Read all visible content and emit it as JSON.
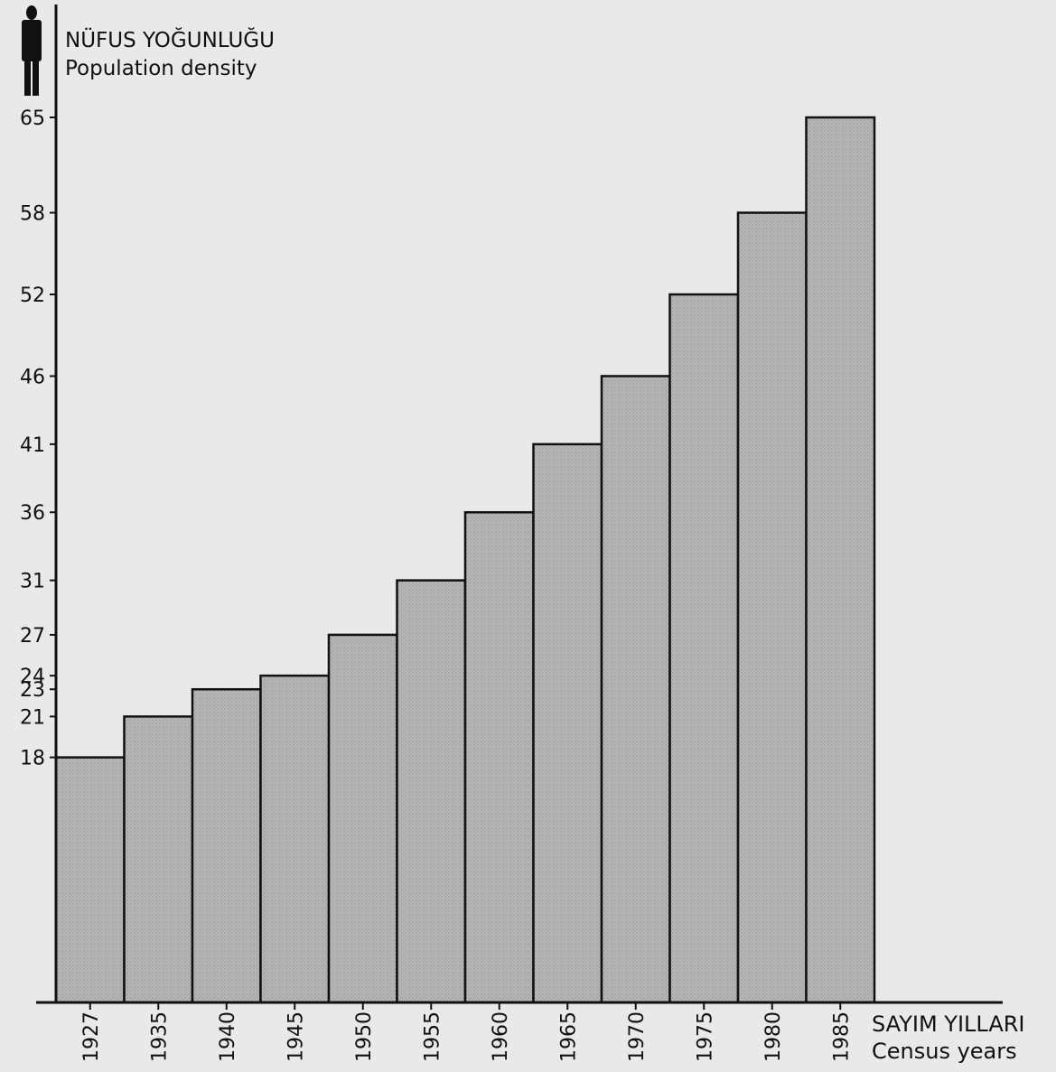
{
  "chart_data": {
    "type": "bar",
    "ylabel_line1": "NÜFUS YOĞUNLUĞU",
    "ylabel_line2": "Population density",
    "xlabel_line1": "SAYIM YILLARI",
    "xlabel_line2": "Census years",
    "categories": [
      "1927",
      "1935",
      "1940",
      "1945",
      "1950",
      "1955",
      "1960",
      "1965",
      "1970",
      "1975",
      "1980",
      "1985"
    ],
    "values": [
      18,
      21,
      23,
      24,
      27,
      31,
      36,
      41,
      46,
      52,
      58,
      65
    ],
    "yticks": [
      18,
      21,
      23,
      24,
      27,
      31,
      36,
      41,
      46,
      52,
      58,
      65
    ],
    "ylim": [
      0,
      65
    ],
    "grid": false,
    "colors": {
      "bar_fill": "#b3b3b3",
      "bar_stroke": "#111111",
      "background": "#e9e9e9"
    },
    "icon": "person-silhouette-icon"
  }
}
